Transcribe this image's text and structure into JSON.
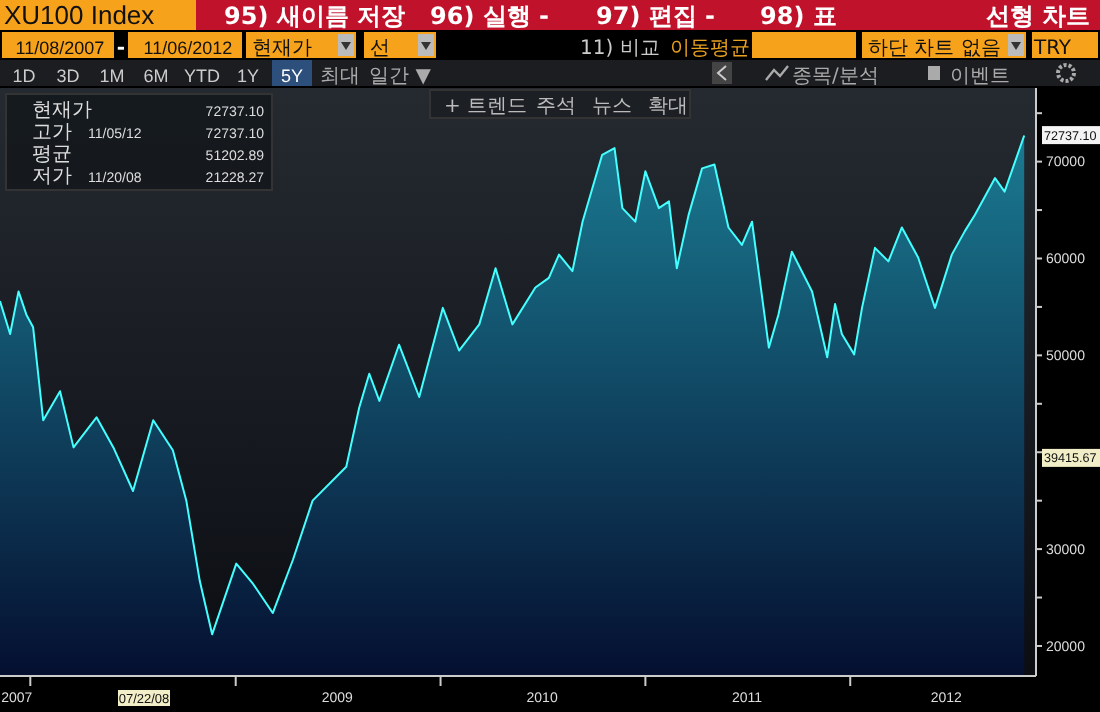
{
  "chart_data": {
    "type": "area",
    "title": "XU100 Index",
    "x": [
      "2007-11-08",
      "2007-11-26",
      "2007-12-11",
      "2007-12-25",
      "2008-01-06",
      "2008-01-24",
      "2008-02-23",
      "2008-03-18",
      "2008-04-28",
      "2008-05-28",
      "2008-07-02",
      "2008-08-07",
      "2008-09-11",
      "2008-10-05",
      "2008-10-29",
      "2008-11-20",
      "2009-01-02",
      "2009-02-01",
      "2009-03-08",
      "2009-04-13",
      "2009-05-18",
      "2009-07-17",
      "2009-08-09",
      "2009-08-27",
      "2009-09-14",
      "2009-10-19",
      "2009-11-24",
      "2010-01-05",
      "2010-02-03",
      "2010-03-11",
      "2010-04-09",
      "2010-05-09",
      "2010-06-19",
      "2010-07-13",
      "2010-07-31",
      "2010-08-24",
      "2010-09-11",
      "2010-10-16",
      "2010-11-07",
      "2010-11-21",
      "2010-12-14",
      "2011-01-01",
      "2011-01-25",
      "2011-02-12",
      "2011-02-26",
      "2011-03-19",
      "2011-04-12",
      "2011-05-04",
      "2011-05-29",
      "2011-06-22",
      "2011-07-10",
      "2011-08-09",
      "2011-08-26",
      "2011-09-19",
      "2011-10-25",
      "2011-11-21",
      "2011-12-05",
      "2011-12-17",
      "2012-01-08",
      "2012-01-22",
      "2012-02-14",
      "2012-03-09",
      "2012-04-02",
      "2012-05-01",
      "2012-05-31",
      "2012-06-30",
      "2012-07-23",
      "2012-08-10",
      "2012-09-15",
      "2012-10-02",
      "2012-11-06"
    ],
    "series": [
      {
        "color": "#1b7c93",
        "values": [
          55600,
          52200,
          56600,
          54200,
          52900,
          43300,
          46300,
          40500,
          43600,
          40500,
          36000,
          43300,
          40200,
          35000,
          26700,
          21200,
          28500,
          26400,
          23400,
          28900,
          35000,
          38500,
          44600,
          48100,
          45300,
          51100,
          45700,
          54900,
          50500,
          53200,
          59000,
          53200,
          57000,
          58000,
          60400,
          58700,
          63800,
          70700,
          71400,
          65200,
          63800,
          69000,
          65200,
          65900,
          59000,
          64500,
          69300,
          69700,
          63200,
          61400,
          63800,
          50800,
          54200,
          60700,
          56600,
          49800,
          55300,
          52200,
          50100,
          54900,
          61100,
          59700,
          63200,
          60100,
          54900,
          60400,
          62800,
          64500,
          68300,
          66900,
          72700
        ]
      }
    ],
    "xlim": [
      "2007-11-08",
      "2012-11-27"
    ],
    "xticks": [
      {
        "value": "2007-12-08",
        "label": "2007"
      },
      {
        "value": "2008-01-01",
        "label": null
      },
      {
        "value": "2009-01-01",
        "label": null
      },
      {
        "value": "2010-01-01",
        "label": null
      },
      {
        "value": "2011-01-01",
        "label": null
      },
      {
        "value": "2012-01-01",
        "label": null
      },
      {
        "value": "2009-07-01",
        "label": "2009"
      },
      {
        "value": "2010-07-01",
        "label": "2010"
      },
      {
        "value": "2011-07-01",
        "label": "2011"
      },
      {
        "value": "2012-06-20",
        "label": "2012"
      }
    ],
    "ylim": [
      16900,
      77600
    ],
    "yticks": [
      20000,
      {
        "value": 25000,
        "label": null
      },
      30000,
      {
        "value": 35000,
        "label": null
      },
      {
        "value": 40000,
        "label": null
      },
      {
        "value": 45000,
        "label": null
      },
      50000,
      {
        "value": 55000,
        "label": null
      },
      60000,
      {
        "value": 65000,
        "label": null
      },
      70000,
      {
        "value": 75000,
        "label": null
      }
    ],
    "annotations": [
      "95) 새이름 저장",
      "96) 실행 -",
      "97) 편집 -",
      "98) 표",
      "선형 차트",
      "11/08/2007",
      "-",
      "11/06/2012",
      "현재가",
      "선",
      "11) 비교",
      "이동평균",
      "하단 차트 없음",
      "TRY",
      "1D",
      "3D",
      "1M",
      "6M",
      "YTD",
      "1Y",
      "5Y",
      "최대",
      "일간 ▼",
      "종목/분석",
      "이벤트",
      "+ 트렌드",
      "주석",
      "뉴스",
      "확대",
      "현재가",
      "72737.10",
      "고가",
      "11/05/12",
      "72737.10",
      "평균",
      "51202.89",
      "저가",
      "11/20/08",
      "21228.27",
      {
        "text": "72737.10",
        "x": "2012-11-06",
        "y": 72737.1
      },
      {
        "text": "39415.67",
        "y": 39415.67
      },
      "07/22/08"
    ]
  }
}
